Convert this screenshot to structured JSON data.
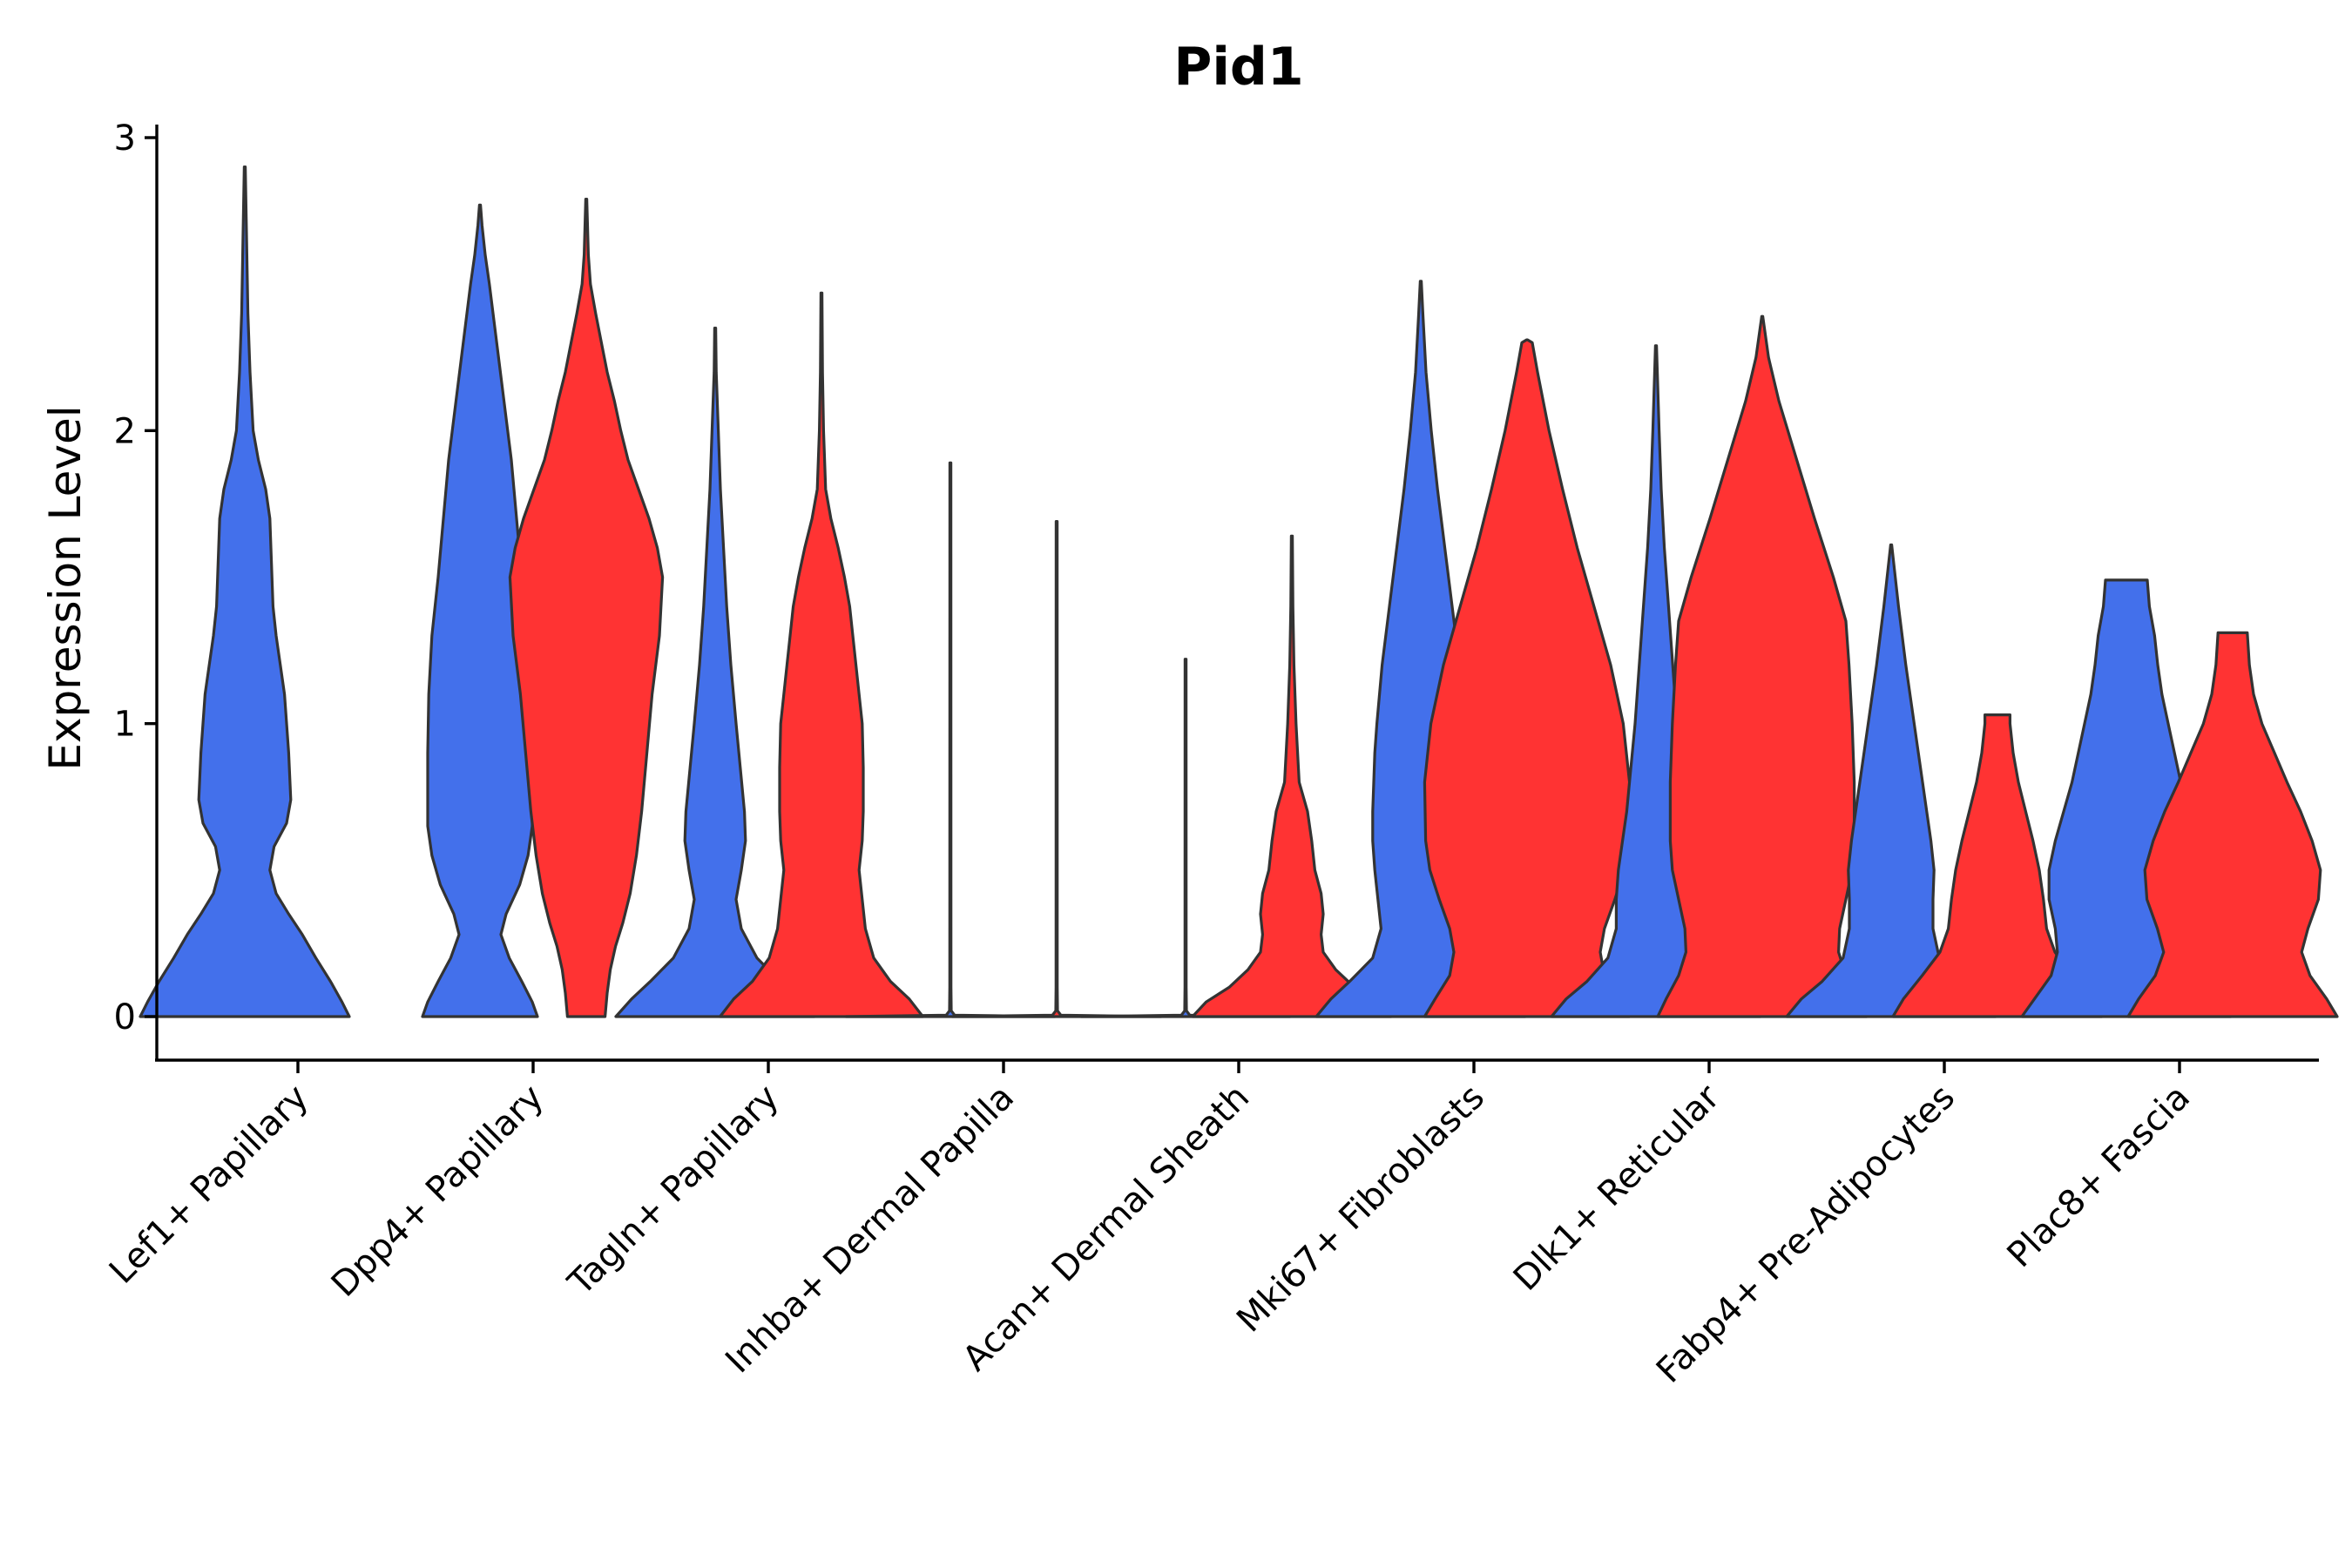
{
  "chart_data": {
    "type": "violin",
    "title": "Pid1",
    "xlabel": "",
    "ylabel": "Expression Level",
    "ylim": [
      -0.15,
      3.05
    ],
    "yticks": [
      0,
      1,
      2,
      3
    ],
    "grid": false,
    "legend": "none",
    "colors": {
      "group1": "#4370EB",
      "group2": "#FF3333"
    },
    "categories": [
      "Lef1+ Papillary",
      "Dpp4+ Papillary",
      "Tagln+ Papillary",
      "Inhba+ Dermal Papilla",
      "Acan+ Dermal Sheath",
      "Mki67+ Fibroblasts",
      "Dlk1+ Reticular",
      "Fabp4+ Pre-Adipocytes",
      "Plac8+ Fascia"
    ],
    "violins": [
      {
        "category": 0,
        "group": "group1",
        "max": 2.9,
        "profile": [
          [
            0,
            1.0
          ],
          [
            0.05,
            0.93
          ],
          [
            0.12,
            0.82
          ],
          [
            0.2,
            0.68
          ],
          [
            0.28,
            0.55
          ],
          [
            0.35,
            0.42
          ],
          [
            0.42,
            0.3
          ],
          [
            0.5,
            0.24
          ],
          [
            0.58,
            0.28
          ],
          [
            0.66,
            0.4
          ],
          [
            0.74,
            0.44
          ],
          [
            0.82,
            0.43
          ],
          [
            0.9,
            0.42
          ],
          [
            1.0,
            0.4
          ],
          [
            1.1,
            0.38
          ],
          [
            1.2,
            0.34
          ],
          [
            1.3,
            0.3
          ],
          [
            1.4,
            0.27
          ],
          [
            1.5,
            0.26
          ],
          [
            1.6,
            0.25
          ],
          [
            1.7,
            0.24
          ],
          [
            1.8,
            0.2
          ],
          [
            1.9,
            0.13
          ],
          [
            2.0,
            0.08
          ],
          [
            2.2,
            0.05
          ],
          [
            2.4,
            0.03
          ],
          [
            2.6,
            0.02
          ],
          [
            2.8,
            0.01
          ],
          [
            2.9,
            0.0
          ]
        ]
      },
      {
        "category": 1,
        "group": "group1",
        "max": 2.77,
        "profile": [
          [
            0,
            0.55
          ],
          [
            0.05,
            0.5
          ],
          [
            0.12,
            0.4
          ],
          [
            0.2,
            0.28
          ],
          [
            0.28,
            0.2
          ],
          [
            0.35,
            0.25
          ],
          [
            0.45,
            0.38
          ],
          [
            0.55,
            0.46
          ],
          [
            0.65,
            0.5
          ],
          [
            0.75,
            0.5
          ],
          [
            0.9,
            0.5
          ],
          [
            1.1,
            0.49
          ],
          [
            1.3,
            0.46
          ],
          [
            1.5,
            0.4
          ],
          [
            1.7,
            0.35
          ],
          [
            1.9,
            0.3
          ],
          [
            2.1,
            0.23
          ],
          [
            2.3,
            0.16
          ],
          [
            2.5,
            0.09
          ],
          [
            2.6,
            0.05
          ],
          [
            2.7,
            0.02
          ],
          [
            2.77,
            0.0
          ]
        ]
      },
      {
        "category": 1,
        "group": "group2",
        "max": 2.79,
        "profile": [
          [
            0,
            0.18
          ],
          [
            0.08,
            0.2
          ],
          [
            0.16,
            0.23
          ],
          [
            0.24,
            0.28
          ],
          [
            0.32,
            0.35
          ],
          [
            0.42,
            0.42
          ],
          [
            0.55,
            0.48
          ],
          [
            0.7,
            0.53
          ],
          [
            0.9,
            0.58
          ],
          [
            1.1,
            0.63
          ],
          [
            1.3,
            0.7
          ],
          [
            1.5,
            0.73
          ],
          [
            1.6,
            0.68
          ],
          [
            1.7,
            0.6
          ],
          [
            1.8,
            0.5
          ],
          [
            1.9,
            0.4
          ],
          [
            2.0,
            0.33
          ],
          [
            2.1,
            0.27
          ],
          [
            2.2,
            0.2
          ],
          [
            2.4,
            0.09
          ],
          [
            2.5,
            0.04
          ],
          [
            2.6,
            0.02
          ],
          [
            2.79,
            0.0
          ]
        ]
      },
      {
        "category": 2,
        "group": "group1",
        "max": 2.35,
        "profile": [
          [
            0,
            0.95
          ],
          [
            0.06,
            0.8
          ],
          [
            0.12,
            0.62
          ],
          [
            0.2,
            0.4
          ],
          [
            0.3,
            0.25
          ],
          [
            0.4,
            0.2
          ],
          [
            0.5,
            0.25
          ],
          [
            0.6,
            0.29
          ],
          [
            0.7,
            0.28
          ],
          [
            0.85,
            0.24
          ],
          [
            1.0,
            0.2
          ],
          [
            1.2,
            0.15
          ],
          [
            1.4,
            0.11
          ],
          [
            1.6,
            0.08
          ],
          [
            1.8,
            0.05
          ],
          [
            2.0,
            0.03
          ],
          [
            2.2,
            0.01
          ],
          [
            2.35,
            0.0
          ]
        ]
      },
      {
        "category": 2,
        "group": "group2",
        "max": 2.47,
        "profile": [
          [
            0,
            0.97
          ],
          [
            0.06,
            0.84
          ],
          [
            0.12,
            0.66
          ],
          [
            0.2,
            0.5
          ],
          [
            0.3,
            0.42
          ],
          [
            0.4,
            0.39
          ],
          [
            0.5,
            0.36
          ],
          [
            0.6,
            0.39
          ],
          [
            0.7,
            0.4
          ],
          [
            0.85,
            0.4
          ],
          [
            1.0,
            0.39
          ],
          [
            1.1,
            0.36
          ],
          [
            1.2,
            0.33
          ],
          [
            1.3,
            0.3
          ],
          [
            1.4,
            0.27
          ],
          [
            1.5,
            0.22
          ],
          [
            1.6,
            0.16
          ],
          [
            1.7,
            0.09
          ],
          [
            1.8,
            0.04
          ],
          [
            2.0,
            0.02
          ],
          [
            2.2,
            0.01
          ],
          [
            2.47,
            0.0
          ]
        ]
      },
      {
        "category": 3,
        "group": "group1",
        "max": 1.89,
        "profile": [
          [
            0,
            1.0
          ],
          [
            0.005,
            0.04
          ],
          [
            0.02,
            0.008
          ],
          [
            0.1,
            0.006
          ],
          [
            1.89,
            0.004
          ]
        ]
      },
      {
        "category": 3,
        "group": "group2",
        "max": 1.69,
        "profile": [
          [
            0,
            1.0
          ],
          [
            0.005,
            0.04
          ],
          [
            0.02,
            0.008
          ],
          [
            0.1,
            0.006
          ],
          [
            1.69,
            0.004
          ]
        ]
      },
      {
        "category": 4,
        "group": "group1",
        "max": 1.22,
        "profile": [
          [
            0,
            1.0
          ],
          [
            0.005,
            0.04
          ],
          [
            0.02,
            0.008
          ],
          [
            0.1,
            0.006
          ],
          [
            1.22,
            0.004
          ]
        ]
      },
      {
        "category": 4,
        "group": "group2",
        "max": 1.64,
        "profile": [
          [
            0,
            0.95
          ],
          [
            0.05,
            0.82
          ],
          [
            0.1,
            0.6
          ],
          [
            0.16,
            0.42
          ],
          [
            0.22,
            0.3
          ],
          [
            0.28,
            0.28
          ],
          [
            0.35,
            0.3
          ],
          [
            0.42,
            0.28
          ],
          [
            0.5,
            0.22
          ],
          [
            0.6,
            0.19
          ],
          [
            0.7,
            0.15
          ],
          [
            0.8,
            0.07
          ],
          [
            1.0,
            0.04
          ],
          [
            1.2,
            0.02
          ],
          [
            1.4,
            0.01
          ],
          [
            1.64,
            0.0
          ]
        ]
      },
      {
        "category": 5,
        "group": "group1",
        "max": 2.51,
        "profile": [
          [
            0,
            1.0
          ],
          [
            0.06,
            0.86
          ],
          [
            0.12,
            0.68
          ],
          [
            0.2,
            0.46
          ],
          [
            0.3,
            0.38
          ],
          [
            0.4,
            0.41
          ],
          [
            0.5,
            0.44
          ],
          [
            0.6,
            0.46
          ],
          [
            0.7,
            0.46
          ],
          [
            0.8,
            0.45
          ],
          [
            0.9,
            0.44
          ],
          [
            1.0,
            0.42
          ],
          [
            1.2,
            0.37
          ],
          [
            1.4,
            0.3
          ],
          [
            1.6,
            0.23
          ],
          [
            1.8,
            0.16
          ],
          [
            2.0,
            0.1
          ],
          [
            2.2,
            0.05
          ],
          [
            2.4,
            0.02
          ],
          [
            2.51,
            0.0
          ]
        ]
      },
      {
        "category": 5,
        "group": "group2",
        "max": 2.31,
        "profile": [
          [
            0,
            0.98
          ],
          [
            0.06,
            0.88
          ],
          [
            0.14,
            0.74
          ],
          [
            0.22,
            0.7
          ],
          [
            0.3,
            0.74
          ],
          [
            0.4,
            0.84
          ],
          [
            0.5,
            0.93
          ],
          [
            0.6,
            0.97
          ],
          [
            0.8,
            0.98
          ],
          [
            1.0,
            0.92
          ],
          [
            1.2,
            0.8
          ],
          [
            1.4,
            0.64
          ],
          [
            1.6,
            0.48
          ],
          [
            1.8,
            0.34
          ],
          [
            2.0,
            0.21
          ],
          [
            2.2,
            0.1
          ],
          [
            2.3,
            0.05
          ],
          [
            2.31,
            0.0
          ]
        ]
      },
      {
        "category": 6,
        "group": "group1",
        "max": 2.29,
        "profile": [
          [
            0,
            1.0
          ],
          [
            0.06,
            0.86
          ],
          [
            0.12,
            0.66
          ],
          [
            0.2,
            0.46
          ],
          [
            0.3,
            0.38
          ],
          [
            0.4,
            0.38
          ],
          [
            0.5,
            0.36
          ],
          [
            0.6,
            0.32
          ],
          [
            0.7,
            0.28
          ],
          [
            0.85,
            0.24
          ],
          [
            1.0,
            0.2
          ],
          [
            1.2,
            0.16
          ],
          [
            1.4,
            0.12
          ],
          [
            1.6,
            0.08
          ],
          [
            1.8,
            0.05
          ],
          [
            2.0,
            0.03
          ],
          [
            2.29,
            0.0
          ]
        ]
      },
      {
        "category": 6,
        "group": "group2",
        "max": 2.39,
        "profile": [
          [
            0,
            1.0
          ],
          [
            0.06,
            0.92
          ],
          [
            0.14,
            0.8
          ],
          [
            0.22,
            0.73
          ],
          [
            0.3,
            0.74
          ],
          [
            0.4,
            0.8
          ],
          [
            0.5,
            0.86
          ],
          [
            0.6,
            0.88
          ],
          [
            0.8,
            0.88
          ],
          [
            1.0,
            0.86
          ],
          [
            1.2,
            0.83
          ],
          [
            1.35,
            0.8
          ],
          [
            1.5,
            0.68
          ],
          [
            1.7,
            0.5
          ],
          [
            1.9,
            0.33
          ],
          [
            2.1,
            0.16
          ],
          [
            2.25,
            0.06
          ],
          [
            2.39,
            0.0
          ]
        ]
      },
      {
        "category": 7,
        "group": "group1",
        "max": 1.61,
        "profile": [
          [
            0,
            1.0
          ],
          [
            0.06,
            0.86
          ],
          [
            0.12,
            0.66
          ],
          [
            0.2,
            0.46
          ],
          [
            0.3,
            0.4
          ],
          [
            0.4,
            0.4
          ],
          [
            0.5,
            0.41
          ],
          [
            0.6,
            0.38
          ],
          [
            0.7,
            0.34
          ],
          [
            0.8,
            0.3
          ],
          [
            0.9,
            0.26
          ],
          [
            1.0,
            0.22
          ],
          [
            1.2,
            0.14
          ],
          [
            1.4,
            0.07
          ],
          [
            1.61,
            0.0
          ]
        ]
      },
      {
        "category": 7,
        "group": "group2",
        "max": 1.03,
        "profile": [
          [
            0,
            1.0
          ],
          [
            0.06,
            0.9
          ],
          [
            0.14,
            0.72
          ],
          [
            0.22,
            0.55
          ],
          [
            0.3,
            0.47
          ],
          [
            0.4,
            0.44
          ],
          [
            0.5,
            0.4
          ],
          [
            0.6,
            0.34
          ],
          [
            0.7,
            0.27
          ],
          [
            0.8,
            0.2
          ],
          [
            0.9,
            0.15
          ],
          [
            1.0,
            0.12
          ],
          [
            1.03,
            0.12
          ]
        ]
      },
      {
        "category": 8,
        "group": "group1",
        "max": 1.49,
        "profile": [
          [
            0,
            1.0
          ],
          [
            0.06,
            0.88
          ],
          [
            0.14,
            0.72
          ],
          [
            0.22,
            0.66
          ],
          [
            0.3,
            0.68
          ],
          [
            0.4,
            0.74
          ],
          [
            0.5,
            0.74
          ],
          [
            0.6,
            0.68
          ],
          [
            0.7,
            0.6
          ],
          [
            0.8,
            0.52
          ],
          [
            0.9,
            0.46
          ],
          [
            1.0,
            0.4
          ],
          [
            1.1,
            0.34
          ],
          [
            1.2,
            0.3
          ],
          [
            1.3,
            0.27
          ],
          [
            1.4,
            0.22
          ],
          [
            1.49,
            0.2
          ]
        ]
      },
      {
        "category": 8,
        "group": "group2",
        "max": 1.31,
        "profile": [
          [
            0,
            1.0
          ],
          [
            0.06,
            0.9
          ],
          [
            0.14,
            0.74
          ],
          [
            0.22,
            0.66
          ],
          [
            0.3,
            0.72
          ],
          [
            0.4,
            0.82
          ],
          [
            0.5,
            0.84
          ],
          [
            0.6,
            0.76
          ],
          [
            0.7,
            0.65
          ],
          [
            0.8,
            0.52
          ],
          [
            0.9,
            0.4
          ],
          [
            1.0,
            0.28
          ],
          [
            1.1,
            0.2
          ],
          [
            1.2,
            0.16
          ],
          [
            1.31,
            0.14
          ]
        ]
      }
    ]
  }
}
